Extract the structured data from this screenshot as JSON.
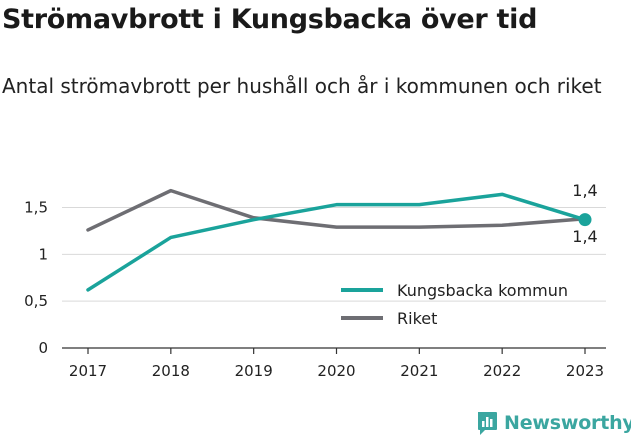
{
  "chart_data": {
    "type": "line",
    "title": "Strömavbrott i Kungsbacka över tid",
    "subtitle": "Antal strömavbrott per hushåll och år i kommunen och riket",
    "xlabel": "",
    "ylabel": "",
    "x": [
      "2017",
      "2018",
      "2019",
      "2020",
      "2021",
      "2022",
      "2023"
    ],
    "ylim": [
      0,
      1.9
    ],
    "yticks": [
      {
        "value": 0,
        "label": "0"
      },
      {
        "value": 0.5,
        "label": "0,5"
      },
      {
        "value": 1,
        "label": "1"
      },
      {
        "value": 1.5,
        "label": "1,5"
      }
    ],
    "grid": true,
    "legend_position": "bottom-right",
    "series": [
      {
        "name": "Kungsbacka kommun",
        "color": "#1aa39b",
        "values": [
          0.62,
          1.18,
          1.37,
          1.53,
          1.53,
          1.64,
          1.37
        ],
        "end_label": "1,4"
      },
      {
        "name": "Riket",
        "color": "#6e6e73",
        "values": [
          1.26,
          1.68,
          1.39,
          1.29,
          1.29,
          1.31,
          1.38
        ],
        "end_label": "1,4"
      }
    ]
  },
  "brand": {
    "name": "Newsworthy",
    "color": "#3ba6a0"
  }
}
